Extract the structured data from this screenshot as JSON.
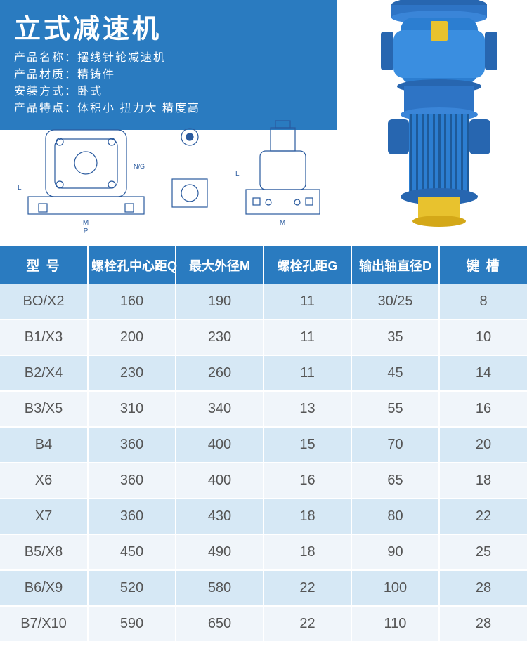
{
  "title": "立式减速机",
  "specs": [
    {
      "label": "产品名称：",
      "value": "摆线针轮减速机"
    },
    {
      "label": "产品材质：",
      "value": "精铸件"
    },
    {
      "label": "安装方式：",
      "value": "卧式"
    },
    {
      "label": "产品特点：",
      "value": "体积小 扭力大 精度高"
    }
  ],
  "colors": {
    "header_bg": "#2a7bc0",
    "row_odd": "#d6e8f5",
    "row_even": "#f0f5fa",
    "text": "#555555"
  },
  "table": {
    "columns": [
      "型   号",
      "螺栓孔中心距Q",
      "最大外径M",
      "螺栓孔距G",
      "输出轴直径D",
      "键   槽"
    ],
    "rows": [
      [
        "BO/X2",
        "160",
        "190",
        "11",
        "30/25",
        "8"
      ],
      [
        "B1/X3",
        "200",
        "230",
        "11",
        "35",
        "10"
      ],
      [
        "B2/X4",
        "230",
        "260",
        "11",
        "45",
        "14"
      ],
      [
        "B3/X5",
        "310",
        "340",
        "13",
        "55",
        "16"
      ],
      [
        "B4",
        "360",
        "400",
        "15",
        "70",
        "20"
      ],
      [
        "X6",
        "360",
        "400",
        "16",
        "65",
        "18"
      ],
      [
        "X7",
        "360",
        "430",
        "18",
        "80",
        "22"
      ],
      [
        "B5/X8",
        "450",
        "490",
        "18",
        "90",
        "25"
      ],
      [
        "B6/X9",
        "520",
        "580",
        "22",
        "100",
        "28"
      ],
      [
        "B7/X10",
        "590",
        "650",
        "22",
        "110",
        "28"
      ]
    ]
  }
}
